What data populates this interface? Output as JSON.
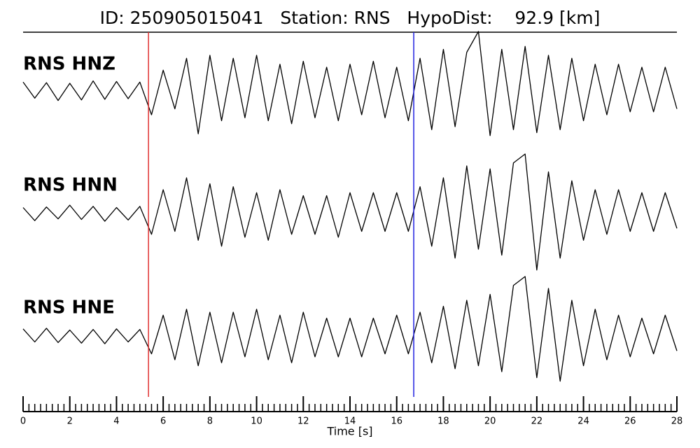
{
  "chart_data": {
    "type": "line",
    "title": "ID: 250905015041   Station: RNS   HypoDist:    92.9 [km]",
    "xlabel": "Time [s]",
    "xlim": [
      0,
      28
    ],
    "xticks": [
      0,
      2,
      4,
      6,
      8,
      10,
      12,
      14,
      16,
      18,
      20,
      22,
      24,
      26,
      28
    ],
    "minor_tick_step": 0.25,
    "ylim": [
      -1,
      1
    ],
    "label_color": "#4a9a0e",
    "picks": [
      {
        "time": 5.37,
        "color": "#e03030"
      },
      {
        "time": 16.73,
        "color": "#2020e0"
      }
    ],
    "x": [
      0,
      0.5,
      1,
      1.5,
      2,
      2.5,
      3,
      3.5,
      4,
      4.5,
      5,
      5.5,
      6,
      6.5,
      7,
      7.5,
      8,
      8.5,
      9,
      9.5,
      10,
      10.5,
      11,
      11.5,
      12,
      12.5,
      13,
      13.5,
      14,
      14.5,
      15,
      15.5,
      16,
      16.5,
      17,
      17.5,
      18,
      18.5,
      19,
      19.5,
      20,
      20.5,
      21,
      21.5,
      22,
      22.5,
      23,
      23.5,
      24,
      24.5,
      25,
      25.5,
      26,
      26.5,
      27,
      27.5,
      28
    ],
    "series": [
      {
        "name": "RNS HNZ",
        "color": "#000000",
        "values": [
          0.15,
          -0.12,
          0.14,
          -0.16,
          0.13,
          -0.15,
          0.17,
          -0.14,
          0.16,
          -0.13,
          0.15,
          -0.4,
          0.35,
          -0.3,
          0.55,
          -0.72,
          0.6,
          -0.5,
          0.55,
          -0.45,
          0.6,
          -0.5,
          0.45,
          -0.55,
          0.5,
          -0.45,
          0.4,
          -0.5,
          0.45,
          -0.4,
          0.5,
          -0.45,
          0.4,
          -0.5,
          0.55,
          -0.65,
          0.7,
          -0.6,
          0.65,
          1.0,
          -0.75,
          0.7,
          -0.65,
          0.75,
          -0.7,
          0.6,
          -0.65,
          0.55,
          -0.5,
          0.45,
          -0.4,
          0.45,
          -0.35,
          0.4,
          -0.35,
          0.4,
          -0.3
        ]
      },
      {
        "name": "RNS HNN",
        "color": "#000000",
        "values": [
          0.1,
          -0.12,
          0.11,
          -0.09,
          0.14,
          -0.1,
          0.12,
          -0.13,
          0.1,
          -0.11,
          0.12,
          -0.35,
          0.4,
          -0.3,
          0.6,
          -0.45,
          0.5,
          -0.55,
          0.45,
          -0.4,
          0.35,
          -0.45,
          0.4,
          -0.35,
          0.3,
          -0.35,
          0.3,
          -0.4,
          0.35,
          -0.3,
          0.35,
          -0.3,
          0.35,
          -0.3,
          0.45,
          -0.55,
          0.6,
          -0.75,
          0.8,
          -0.6,
          0.75,
          -0.7,
          0.85,
          1.0,
          -0.95,
          0.7,
          -0.75,
          0.55,
          -0.45,
          0.4,
          -0.35,
          0.4,
          -0.3,
          0.35,
          -0.3,
          0.35,
          -0.25
        ]
      },
      {
        "name": "RNS HNE",
        "color": "#000000",
        "values": [
          0.12,
          -0.1,
          0.13,
          -0.11,
          0.1,
          -0.12,
          0.11,
          -0.13,
          0.12,
          -0.1,
          0.11,
          -0.3,
          0.35,
          -0.4,
          0.45,
          -0.5,
          0.4,
          -0.45,
          0.4,
          -0.35,
          0.45,
          -0.4,
          0.35,
          -0.45,
          0.4,
          -0.35,
          0.3,
          -0.35,
          0.3,
          -0.35,
          0.3,
          -0.3,
          0.35,
          -0.3,
          0.4,
          -0.45,
          0.5,
          -0.55,
          0.6,
          -0.5,
          0.7,
          -0.6,
          0.85,
          1.0,
          -0.7,
          0.8,
          -0.76,
          0.6,
          -0.5,
          0.45,
          -0.4,
          0.35,
          -0.35,
          0.3,
          -0.3,
          0.35,
          -0.25
        ]
      }
    ]
  }
}
